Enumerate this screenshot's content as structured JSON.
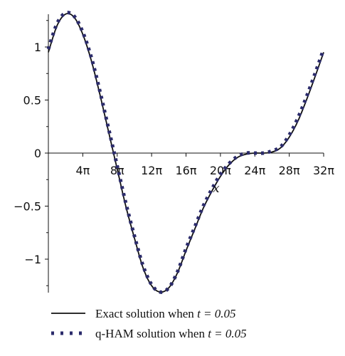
{
  "chart_data": {
    "type": "line",
    "xlabel": "x",
    "ylabel": "",
    "xlim": [
      0,
      32
    ],
    "ylim": [
      -1.3,
      1.3
    ],
    "x_unit": "π",
    "x_ticks": [
      4,
      8,
      12,
      16,
      20,
      24,
      28,
      32
    ],
    "x_tick_labels": [
      "4π",
      "8π",
      "12π",
      "16π",
      "20π",
      "24π",
      "28π",
      "32π"
    ],
    "y_ticks": [
      1,
      0.5,
      0,
      -0.5,
      -1
    ],
    "y_tick_labels": [
      "1",
      "0.5",
      "0",
      "−0.5",
      "−1"
    ],
    "grid": false,
    "legend_position": "bottom",
    "series": [
      {
        "name": "Exact solution when t = 0.05",
        "legend_prefix": "Exact solution when ",
        "legend_param": "t = 0.05",
        "style": "solid",
        "color": "#111111",
        "x": [
          0,
          1,
          2,
          3,
          4,
          5,
          6,
          7,
          8,
          9,
          10,
          11,
          12,
          13,
          14,
          15,
          16,
          17,
          18,
          19,
          20,
          21,
          22,
          23,
          24,
          25,
          26,
          27,
          28,
          29,
          30,
          31,
          32
        ],
        "y": [
          0.95,
          1.2,
          1.31,
          1.28,
          1.12,
          0.87,
          0.55,
          0.2,
          -0.15,
          -0.5,
          -0.8,
          -1.08,
          -1.25,
          -1.31,
          -1.27,
          -1.13,
          -0.92,
          -0.72,
          -0.52,
          -0.36,
          -0.22,
          -0.11,
          -0.04,
          -0.01,
          0.0,
          0.0,
          0.01,
          0.05,
          0.15,
          0.3,
          0.5,
          0.72,
          0.95
        ]
      },
      {
        "name": "q-HAM solution when t = 0.05",
        "legend_prefix": "q-HAM solution when ",
        "legend_param": "t = 0.05",
        "style": "dotted",
        "color": "#2b2b6b",
        "x": [
          0,
          1,
          2,
          3,
          4,
          5,
          6,
          7,
          8,
          9,
          10,
          11,
          12,
          13,
          14,
          15,
          16,
          17,
          18,
          19,
          20,
          21,
          22,
          23,
          24,
          25,
          26,
          27,
          28,
          29,
          30,
          31,
          32
        ],
        "y": [
          0.98,
          1.22,
          1.32,
          1.29,
          1.14,
          0.9,
          0.58,
          0.23,
          -0.12,
          -0.47,
          -0.78,
          -1.06,
          -1.24,
          -1.31,
          -1.27,
          -1.12,
          -0.9,
          -0.7,
          -0.5,
          -0.34,
          -0.2,
          -0.1,
          -0.03,
          0.0,
          0.0,
          0.0,
          0.02,
          0.06,
          0.17,
          0.33,
          0.53,
          0.75,
          0.98
        ]
      }
    ]
  }
}
